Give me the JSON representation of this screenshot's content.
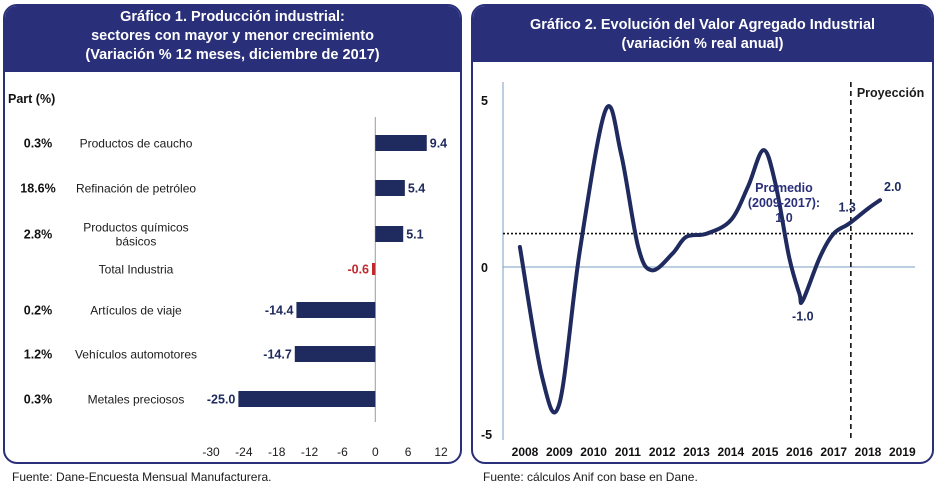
{
  "chart_data": [
    {
      "type": "bar",
      "orientation": "horizontal",
      "title": [
        "Gráfico 1. Producción industrial:",
        "sectores con mayor y menor crecimiento",
        "(Variación % 12 meses, diciembre de 2017)"
      ],
      "share_header": "Part (%)",
      "categories": [
        "Productos de caucho",
        "Refinación de petróleo",
        "Productos químicos básicos",
        "Total Industria",
        "Artículos de viaje",
        "Vehículos automotores",
        "Metales preciosos"
      ],
      "category_lines": [
        [
          "Productos de caucho"
        ],
        [
          "Refinación de petróleo"
        ],
        [
          "Productos químicos",
          "básicos"
        ],
        [
          "Total Industria"
        ],
        [
          "Artículos de viaje"
        ],
        [
          "Vehículos automotores"
        ],
        [
          "Metales preciosos"
        ]
      ],
      "shares": [
        "0.3%",
        "18.6%",
        "2.8%",
        "",
        "0.2%",
        "1.2%",
        "0.3%"
      ],
      "values": [
        9.4,
        5.4,
        5.1,
        -0.6,
        -14.4,
        -14.7,
        -25.0
      ],
      "value_labels": [
        "9.4",
        "5.4",
        "5.1",
        "-0.6",
        "-14.4",
        "-14.7",
        "-25.0"
      ],
      "highlight_category": "Total Industria",
      "xlim": [
        -30,
        12
      ],
      "xticks": [
        "-30",
        "-24",
        "-18",
        "-12",
        "-6",
        "0",
        "6",
        "12"
      ],
      "grid": false,
      "colors": {
        "bar": "#1f2a5e",
        "highlight": "#c0282d"
      }
    },
    {
      "type": "line",
      "title": [
        "Gráfico 2. Evolución del Valor Agregado Industrial",
        "(variación % real anual)"
      ],
      "x": [
        2008,
        2009,
        2010,
        2011,
        2012,
        2013,
        2014,
        2015,
        2016,
        2017,
        2018,
        2019
      ],
      "xticks": [
        "2008",
        "2009",
        "2010",
        "2011",
        "2012",
        "2013",
        "2014",
        "2015",
        "2016",
        "2017",
        "2018",
        "2019"
      ],
      "curve": [
        [
          2007.85,
          0.6
        ],
        [
          2008.5,
          -3.3
        ],
        [
          2009.0,
          -4.1
        ],
        [
          2009.6,
          0.5
        ],
        [
          2010.35,
          4.7
        ],
        [
          2010.8,
          3.4
        ],
        [
          2011.3,
          0.6
        ],
        [
          2011.7,
          -0.1
        ],
        [
          2012.3,
          0.4
        ],
        [
          2012.7,
          0.9
        ],
        [
          2013.3,
          1.0
        ],
        [
          2014.0,
          1.4
        ],
        [
          2014.5,
          2.4
        ],
        [
          2014.95,
          3.5
        ],
        [
          2015.3,
          2.5
        ],
        [
          2015.7,
          0.3
        ],
        [
          2016.0,
          -0.8
        ],
        [
          2016.1,
          -1.0
        ],
        [
          2016.6,
          0.3
        ],
        [
          2017.0,
          1.0
        ],
        [
          2017.45,
          1.3
        ],
        [
          2018.0,
          1.75
        ],
        [
          2018.35,
          2.0
        ]
      ],
      "ylim": [
        -5,
        5
      ],
      "yticks": [
        "5",
        "0",
        "-5"
      ],
      "average": {
        "value": 1.0,
        "label_lines": [
          "Promedio",
          "(2009-2017):",
          "1.0"
        ]
      },
      "projection": {
        "from_x": 2017.5,
        "label": "Proyección"
      },
      "annotations": [
        {
          "text": "-1.0",
          "x": 2016.1,
          "y": -1.0
        },
        {
          "text": "1.3",
          "x": 2017.45,
          "y": 1.3
        },
        {
          "text": "2.0",
          "x": 2018.35,
          "y": 2.0
        }
      ],
      "grid": false,
      "colors": {
        "line": "#1f2a5e",
        "zero_line": "#7a9cc6",
        "average": "#111111"
      }
    }
  ],
  "sources": [
    "Fuente: Dane-Encuesta Mensual Manufacturera.",
    "Fuente: cálculos Anif con base en Dane."
  ]
}
